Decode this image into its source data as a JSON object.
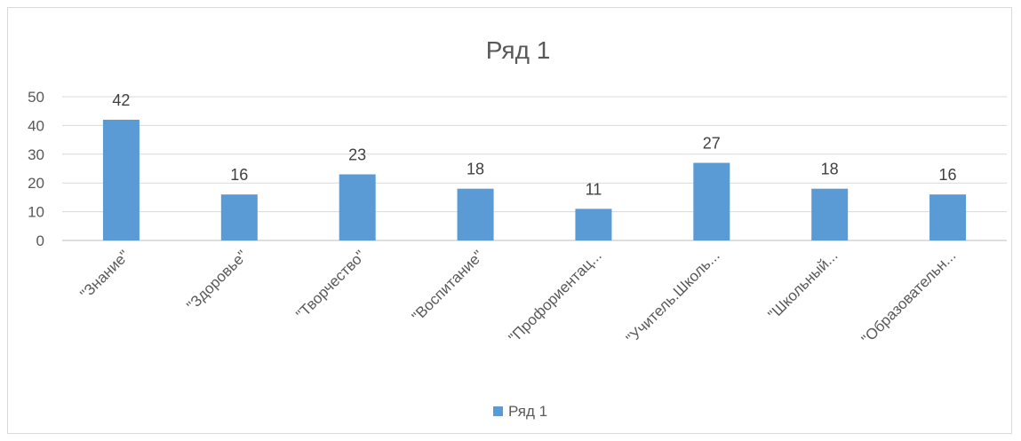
{
  "chart_data": {
    "type": "bar",
    "title": "Ряд 1",
    "categories": [
      "\"Знание\"",
      "\"Здоровье\"",
      "\"Творчество\"",
      "\"Воспитание\"",
      "\"Профориентац...",
      "\"Учитель.Школь...",
      "\"Школьный...",
      "\"Образовательн..."
    ],
    "series": [
      {
        "name": "Ряд 1",
        "values": [
          42,
          16,
          23,
          18,
          11,
          27,
          18,
          16
        ],
        "color": "#5b9bd5"
      }
    ],
    "yticks": [
      0,
      10,
      20,
      30,
      40,
      50
    ],
    "ylim": [
      0,
      50
    ],
    "grid": true,
    "legend": "bottom"
  }
}
